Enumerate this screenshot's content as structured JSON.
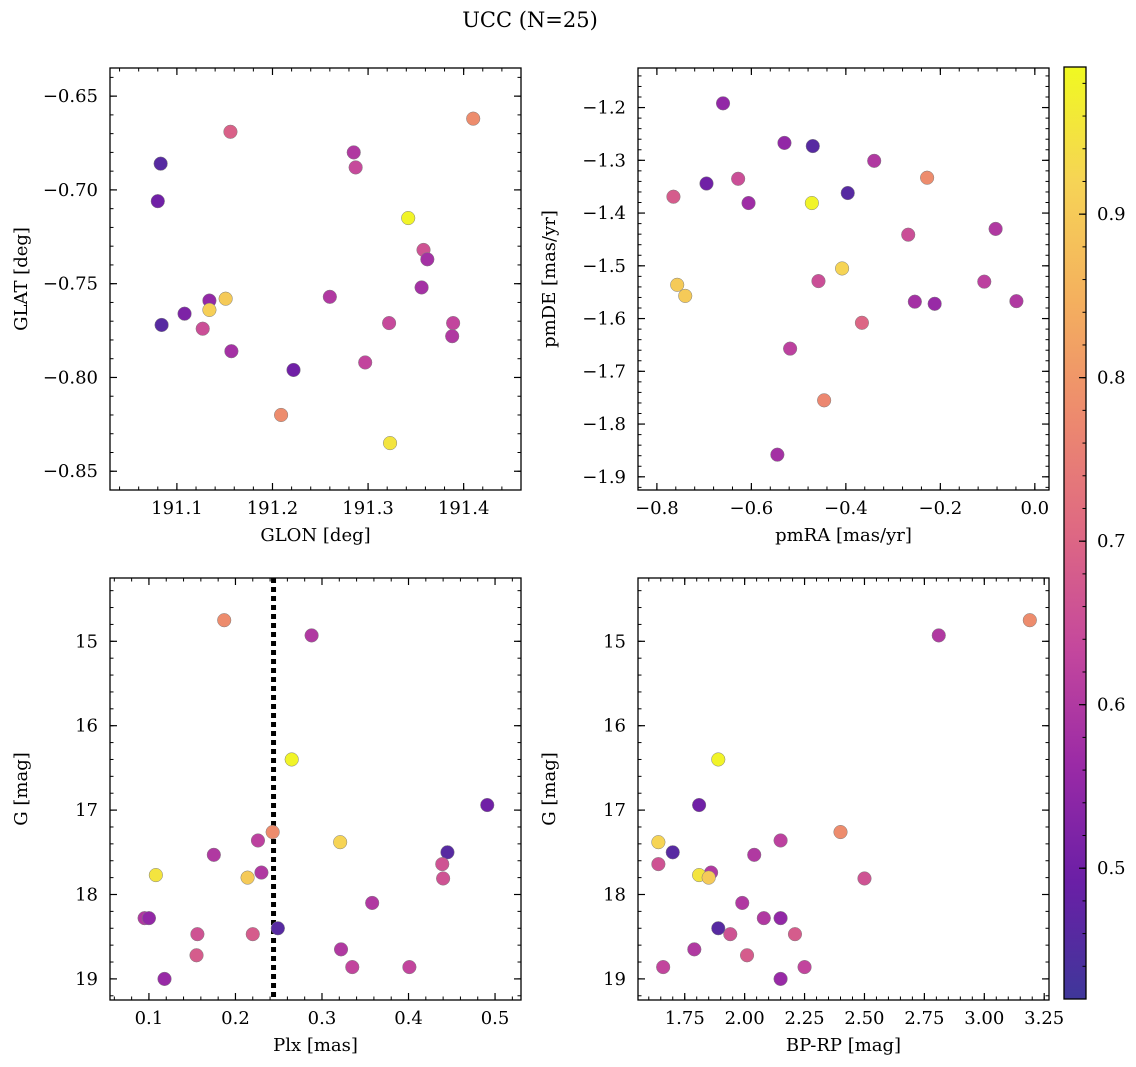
{
  "figure": {
    "suptitle": "UCC (N=25)",
    "colorbar": {
      "colormap": "plasma",
      "range": [
        0.42,
        0.99
      ],
      "ticks": [
        "0.5",
        "0.6",
        "0.7",
        "0.8",
        "0.9"
      ],
      "tick_values": [
        0.5,
        0.6,
        0.7,
        0.8,
        0.9
      ],
      "colors": [
        "#3f379a",
        "#6a1fa6",
        "#9a2aa6",
        "#c4479d",
        "#de6883",
        "#ed8a6e",
        "#f4b05e",
        "#f6d356",
        "#f0f921"
      ]
    },
    "marker_edge_color": "#808080"
  },
  "chart_data": [
    {
      "type": "scatter",
      "xlabel": "GLON [deg]",
      "ylabel": "GLAT [deg]",
      "xlim": [
        191.03,
        191.46
      ],
      "ylim": [
        -0.86,
        -0.635
      ],
      "xticks": [
        191.1,
        191.2,
        191.3,
        191.4
      ],
      "xtick_labels": [
        "191.1",
        "191.2",
        "191.3",
        "191.4"
      ],
      "yticks": [
        -0.85,
        -0.8,
        -0.75,
        -0.7,
        -0.65
      ],
      "ytick_labels": [
        "−0.85",
        "−0.80",
        "−0.75",
        "−0.70",
        "−0.65"
      ],
      "x": [
        191.41,
        191.342,
        191.323,
        191.083,
        191.084,
        191.134,
        191.151,
        191.134,
        191.108,
        191.127,
        191.157,
        191.156,
        191.222,
        191.209,
        191.26,
        191.285,
        191.287,
        191.297,
        191.322,
        191.358,
        191.362,
        191.356,
        191.389,
        191.388,
        191.08
      ],
      "y": [
        -0.662,
        -0.715,
        -0.835,
        -0.686,
        -0.772,
        -0.759,
        -0.758,
        -0.764,
        -0.766,
        -0.774,
        -0.786,
        -0.669,
        -0.796,
        -0.82,
        -0.757,
        -0.68,
        -0.688,
        -0.792,
        -0.771,
        -0.732,
        -0.737,
        -0.752,
        -0.771,
        -0.778,
        -0.706
      ],
      "c": [
        0.78,
        0.98,
        0.95,
        0.46,
        0.46,
        0.55,
        0.9,
        0.91,
        0.52,
        0.65,
        0.58,
        0.69,
        0.5,
        0.78,
        0.6,
        0.6,
        0.64,
        0.63,
        0.64,
        0.66,
        0.58,
        0.58,
        0.63,
        0.6,
        0.5
      ]
    },
    {
      "type": "scatter",
      "xlabel": "pmRA [mas/yr]",
      "ylabel": "pmDE [mas/yr]",
      "xlim": [
        -0.84,
        0.03
      ],
      "ylim": [
        -1.925,
        -1.125
      ],
      "xticks": [
        -0.8,
        -0.6,
        -0.4,
        -0.2,
        0.0
      ],
      "xtick_labels": [
        "−0.8",
        "−0.6",
        "−0.4",
        "−0.2",
        "0.0"
      ],
      "yticks": [
        -1.9,
        -1.8,
        -1.7,
        -1.6,
        -1.5,
        -1.4,
        -1.3,
        -1.2
      ],
      "ytick_labels": [
        "−1.9",
        "−1.8",
        "−1.7",
        "−1.6",
        "−1.5",
        "−1.4",
        "−1.3",
        "−1.2"
      ],
      "x": [
        -0.66,
        -0.53,
        -0.47,
        -0.34,
        -0.695,
        -0.628,
        -0.606,
        -0.765,
        -0.396,
        -0.228,
        -0.472,
        -0.268,
        -0.408,
        -0.458,
        -0.757,
        -0.74,
        -0.107,
        -0.083,
        -0.254,
        -0.212,
        -0.039,
        -0.366,
        -0.518,
        -0.446,
        -0.545
      ],
      "y": [
        -1.192,
        -1.267,
        -1.273,
        -1.301,
        -1.344,
        -1.335,
        -1.381,
        -1.369,
        -1.362,
        -1.333,
        -1.381,
        -1.441,
        -1.505,
        -1.529,
        -1.536,
        -1.557,
        -1.53,
        -1.43,
        -1.568,
        -1.572,
        -1.567,
        -1.608,
        -1.657,
        -1.755,
        -1.858
      ],
      "c": [
        0.55,
        0.55,
        0.46,
        0.6,
        0.5,
        0.65,
        0.57,
        0.68,
        0.46,
        0.78,
        0.98,
        0.65,
        0.92,
        0.65,
        0.9,
        0.9,
        0.62,
        0.6,
        0.58,
        0.56,
        0.6,
        0.7,
        0.62,
        0.77,
        0.58
      ]
    },
    {
      "type": "scatter",
      "xlabel": "Plx [mas]",
      "ylabel": "G [mag]",
      "xlim": [
        0.055,
        0.53
      ],
      "ylim": [
        19.25,
        14.25
      ],
      "y_inverted": true,
      "xticks": [
        0.1,
        0.2,
        0.3,
        0.4,
        0.5
      ],
      "xtick_labels": [
        "0.1",
        "0.2",
        "0.3",
        "0.4",
        "0.5"
      ],
      "yticks": [
        15,
        16,
        17,
        18,
        19
      ],
      "ytick_labels": [
        "15",
        "16",
        "17",
        "18",
        "19"
      ],
      "vline": {
        "x": 0.244,
        "style": "dotted",
        "color": "#000000"
      },
      "x": [
        0.187,
        0.288,
        0.265,
        0.491,
        0.445,
        0.321,
        0.243,
        0.226,
        0.175,
        0.23,
        0.108,
        0.214,
        0.439,
        0.44,
        0.358,
        0.095,
        0.1,
        0.156,
        0.22,
        0.249,
        0.155,
        0.322,
        0.335,
        0.401,
        0.118
      ],
      "y": [
        14.75,
        14.93,
        16.4,
        16.94,
        17.5,
        17.38,
        17.26,
        17.36,
        17.53,
        17.74,
        17.77,
        17.8,
        17.64,
        17.81,
        18.1,
        18.28,
        18.28,
        18.47,
        18.47,
        18.4,
        18.72,
        18.65,
        18.86,
        18.86,
        19.0
      ],
      "c": [
        0.78,
        0.6,
        0.98,
        0.5,
        0.46,
        0.92,
        0.78,
        0.62,
        0.6,
        0.6,
        0.95,
        0.9,
        0.66,
        0.66,
        0.6,
        0.6,
        0.55,
        0.66,
        0.68,
        0.46,
        0.68,
        0.6,
        0.63,
        0.63,
        0.56
      ]
    },
    {
      "type": "scatter",
      "xlabel": "BP-RP [mag]",
      "ylabel": "G [mag]",
      "xlim": [
        1.555,
        3.27
      ],
      "ylim": [
        19.25,
        14.25
      ],
      "y_inverted": true,
      "xticks": [
        1.75,
        2.0,
        2.25,
        2.5,
        2.75,
        3.0,
        3.25
      ],
      "xtick_labels": [
        "1.75",
        "2.00",
        "2.25",
        "2.50",
        "2.75",
        "3.00",
        "3.25"
      ],
      "yticks": [
        15,
        16,
        17,
        18,
        19
      ],
      "ytick_labels": [
        "15",
        "16",
        "17",
        "18",
        "19"
      ],
      "x": [
        3.19,
        2.81,
        1.89,
        1.81,
        1.7,
        1.64,
        2.4,
        2.15,
        2.04,
        1.86,
        1.81,
        1.85,
        1.64,
        2.5,
        1.99,
        2.08,
        2.15,
        1.94,
        2.21,
        1.89,
        2.01,
        1.79,
        1.66,
        2.25,
        2.15
      ],
      "y": [
        14.75,
        14.93,
        16.4,
        16.94,
        17.5,
        17.38,
        17.26,
        17.36,
        17.53,
        17.74,
        17.77,
        17.8,
        17.64,
        17.81,
        18.1,
        18.28,
        18.28,
        18.47,
        18.47,
        18.4,
        18.72,
        18.65,
        18.86,
        18.86,
        19.0
      ],
      "c": [
        0.78,
        0.6,
        0.98,
        0.5,
        0.46,
        0.92,
        0.78,
        0.62,
        0.6,
        0.6,
        0.95,
        0.9,
        0.66,
        0.66,
        0.6,
        0.6,
        0.55,
        0.66,
        0.68,
        0.46,
        0.68,
        0.6,
        0.63,
        0.63,
        0.56
      ]
    }
  ]
}
